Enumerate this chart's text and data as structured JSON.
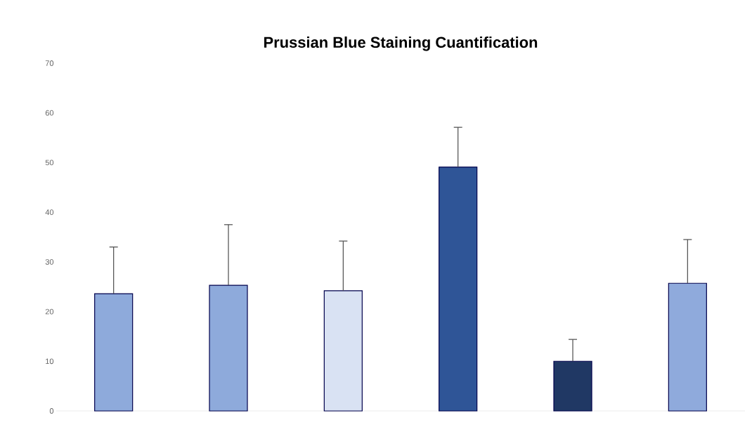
{
  "chart_data": {
    "type": "bar",
    "title": "Prussian Blue Staining Cuantification",
    "categories": [
      null,
      null,
      null,
      null,
      null,
      null
    ],
    "values": [
      23.6,
      25.3,
      24.2,
      49.1,
      10.0,
      25.7
    ],
    "colors": [
      "#8eaadb",
      "#8eaadb",
      "#d9e2f3",
      "#2f5597",
      "#203864",
      "#8faadc"
    ],
    "errors": [
      [
        23.6,
        33.0
      ],
      [
        25.3,
        37.5
      ],
      [
        24.2,
        34.2
      ],
      [
        49.1,
        57.1
      ],
      [
        10.0,
        14.4
      ],
      [
        25.7,
        34.5
      ]
    ],
    "ylim": [
      0,
      70
    ],
    "yticks": [
      0,
      10,
      20,
      30,
      40,
      50,
      60,
      70
    ]
  }
}
